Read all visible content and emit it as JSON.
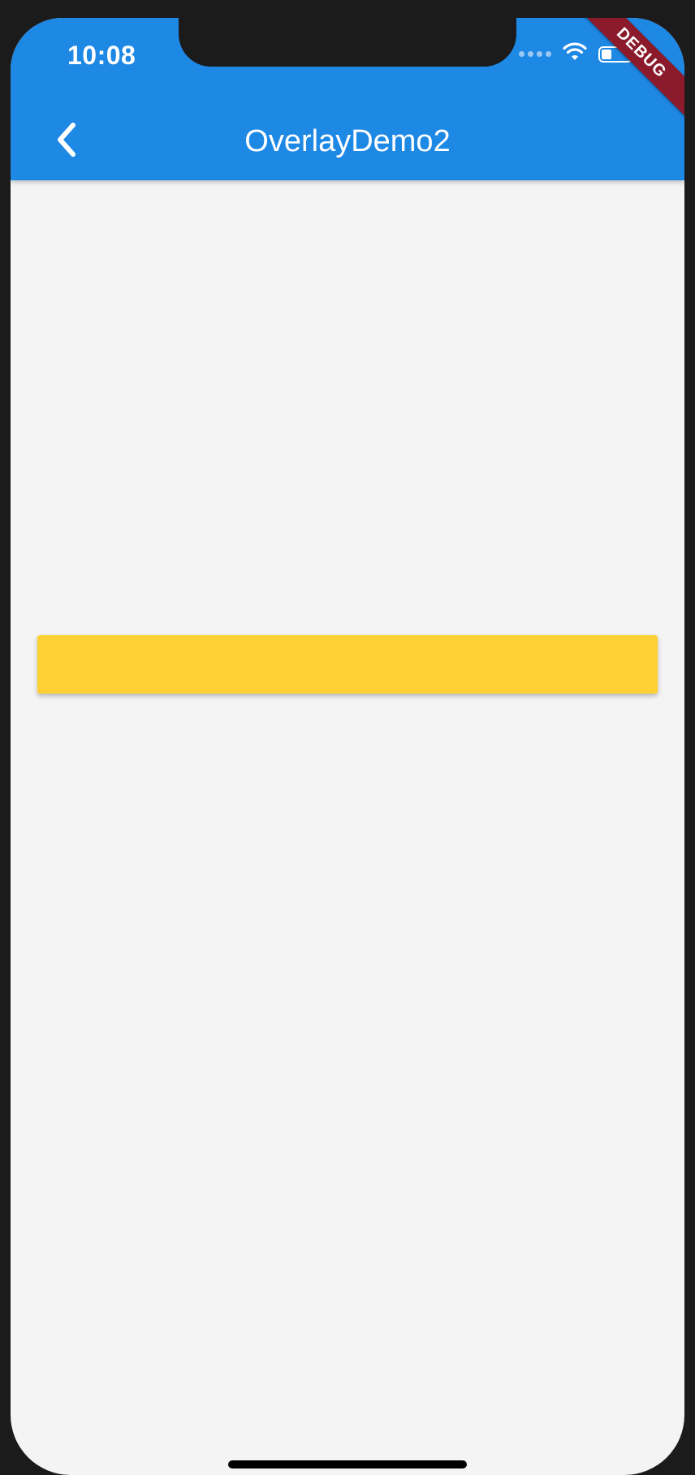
{
  "status_bar": {
    "time": "10:08",
    "icons": [
      "signal-dots-icon",
      "wifi-icon",
      "battery-icon"
    ]
  },
  "app_bar": {
    "title": "OverlayDemo2",
    "back_icon": "chevron-left-icon",
    "color": "#1e88e5"
  },
  "debug_banner": {
    "label": "DEBUG",
    "color": "#8b1a2b"
  },
  "overlay": {
    "color": "#fdd034"
  },
  "colors": {
    "background": "#f4f4f4",
    "device_frame": "#1b1b1b"
  }
}
